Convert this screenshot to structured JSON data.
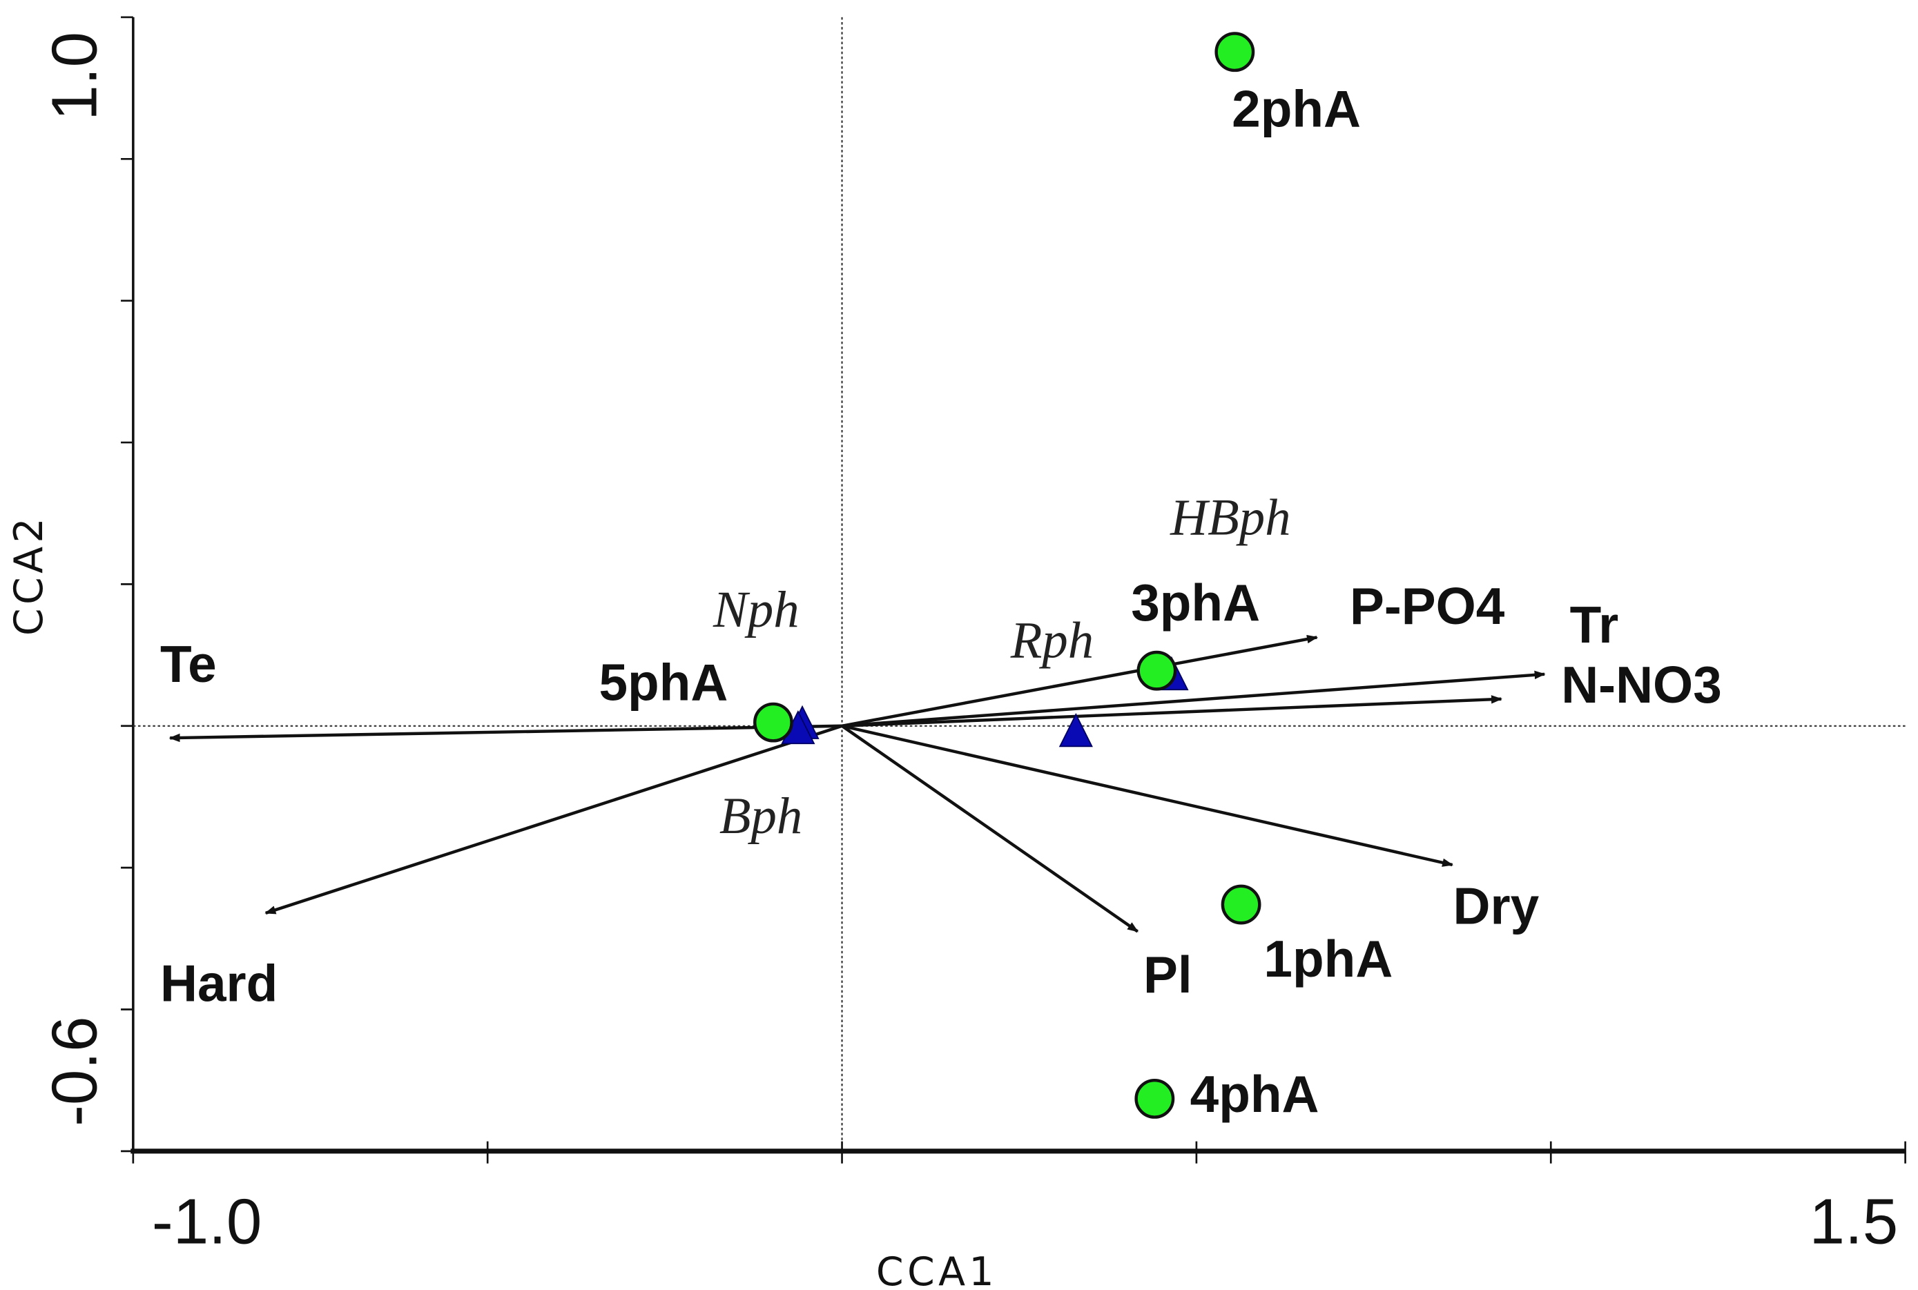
{
  "chart_data": {
    "type": "scatter",
    "title": "",
    "xlabel": "CCA1",
    "ylabel": "CCA2",
    "xlim": [
      -1.0,
      1.5
    ],
    "ylim": [
      -0.6,
      1.0
    ],
    "x_tick_labels": [
      "-1.0",
      "1.5"
    ],
    "y_tick_labels": [
      "1.0",
      "-0.6"
    ],
    "x_ticks": [
      -1.0,
      -0.5,
      0,
      0.5,
      1.0,
      1.5
    ],
    "y_ticks": [
      -0.6,
      -0.4,
      -0.2,
      0,
      0.2,
      0.4,
      0.6,
      0.8,
      1.0
    ],
    "grid": false,
    "colors": {
      "sites": "#22ee22",
      "species": "#0a0ab4",
      "arrows": "#111111"
    },
    "sites": [
      {
        "name": "2phA",
        "x": 0.554,
        "y": 0.951
      },
      {
        "name": "3phA",
        "x": 0.444,
        "y": 0.078
      },
      {
        "name": "5phA",
        "x": -0.097,
        "y": 0.005
      },
      {
        "name": "1phA",
        "x": 0.563,
        "y": -0.252
      },
      {
        "name": "4phA",
        "x": 0.441,
        "y": -0.526
      }
    ],
    "species": [
      {
        "name": "Nph",
        "x": -0.056,
        "y": 0.003
      },
      {
        "name": "Bph",
        "x": -0.062,
        "y": -0.004
      },
      {
        "name": "Rph",
        "x": 0.33,
        "y": -0.008
      },
      {
        "name": "HBph",
        "x": 0.465,
        "y": 0.072
      }
    ],
    "arrows": [
      {
        "name": "Te",
        "x": -0.948,
        "y": -0.017
      },
      {
        "name": "Hard",
        "x": -0.813,
        "y": -0.264
      },
      {
        "name": "P-PO4",
        "x": 0.67,
        "y": 0.125
      },
      {
        "name": "Tr",
        "x": 0.991,
        "y": 0.073
      },
      {
        "name": "N-NO3",
        "x": 0.93,
        "y": 0.038
      },
      {
        "name": "Dry",
        "x": 0.861,
        "y": -0.196
      },
      {
        "name": "Pl",
        "x": 0.417,
        "y": -0.29
      }
    ]
  }
}
